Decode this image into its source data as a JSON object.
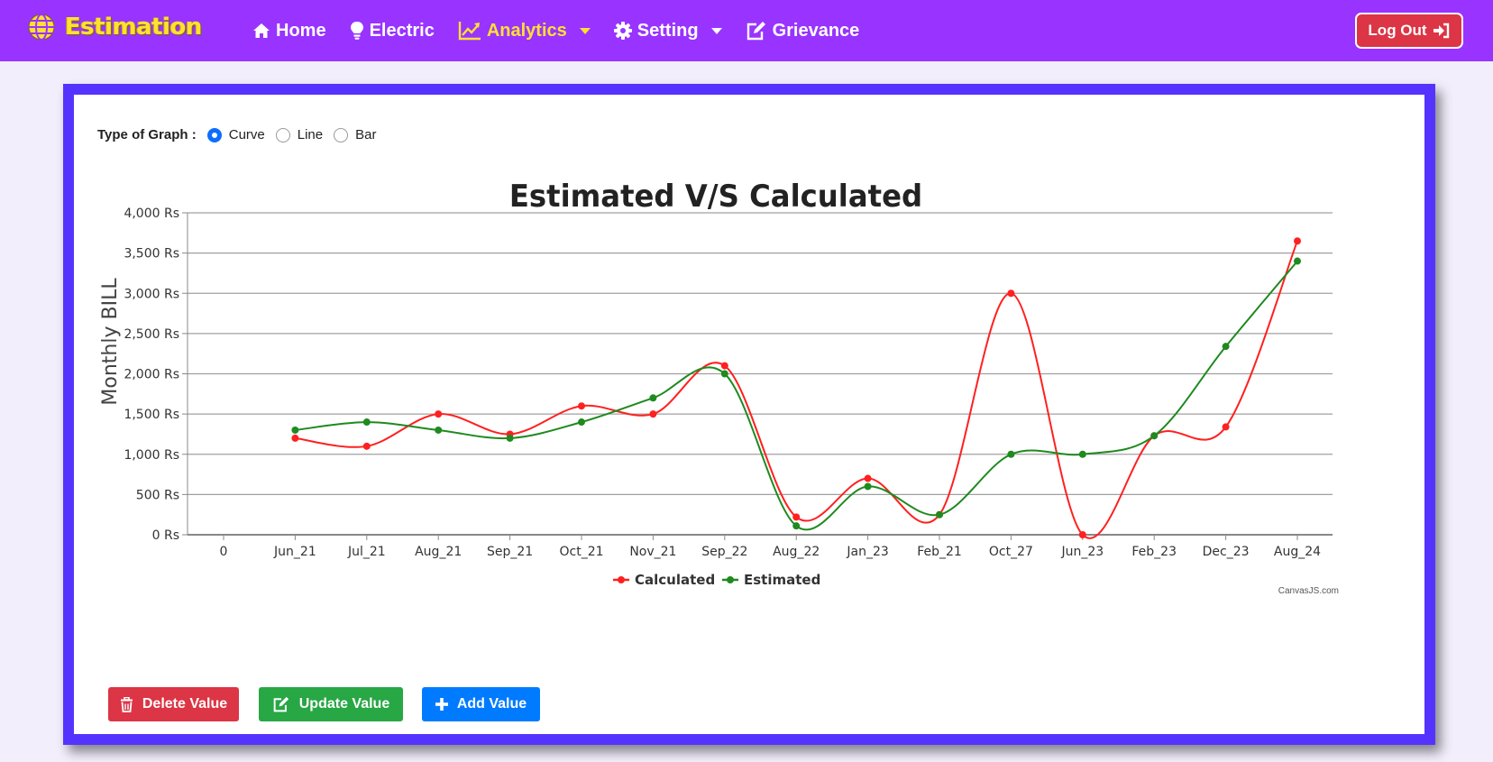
{
  "brand": {
    "name": "Estimation",
    "icon": "globe-icon"
  },
  "nav": {
    "home": {
      "label": "Home",
      "icon": "home-icon"
    },
    "electric": {
      "label": "Electric",
      "icon": "lightbulb-icon"
    },
    "analytics": {
      "label": "Analytics",
      "icon": "chart-line-icon"
    },
    "setting": {
      "label": "Setting",
      "icon": "gear-icon"
    },
    "grievance": {
      "label": "Grievance",
      "icon": "edit-icon"
    },
    "logout": {
      "label": "Log Out",
      "icon": "sign-in-icon"
    }
  },
  "graph_type": {
    "label": "Type of Graph :",
    "options": [
      "Curve",
      "Line",
      "Bar"
    ],
    "selected": "Curve"
  },
  "colors": {
    "nav": "#9933ff",
    "brand": "#ffe033",
    "panel": "#5533ff",
    "calculated": "#ff2020",
    "estimated": "#1f8a1f"
  },
  "chart_data": {
    "type": "line",
    "title": "Estimated V/S Calculated",
    "ylabel": "Monthly BILL",
    "xlabel": "",
    "ylim": [
      0,
      4000
    ],
    "y_ticks": [
      "0 Rs",
      "500 Rs",
      "1,000 Rs",
      "1,500 Rs",
      "2,000 Rs",
      "2,500 Rs",
      "3,000 Rs",
      "3,500 Rs",
      "4,000 Rs"
    ],
    "categories": [
      "0",
      "Jun_21",
      "Jul_21",
      "Aug_21",
      "Sep_21",
      "Oct_21",
      "Nov_21",
      "Sep_22",
      "Aug_22",
      "Jan_23",
      "Feb_21",
      "Oct_27",
      "Jun_23",
      "Feb_23",
      "Dec_23",
      "Aug_24"
    ],
    "series": [
      {
        "name": "Calculated",
        "color": "#ff2020",
        "values": [
          null,
          1200,
          1100,
          1500,
          1250,
          1600,
          1500,
          2100,
          220,
          700,
          250,
          3000,
          0,
          1230,
          1340,
          3650
        ]
      },
      {
        "name": "Estimated",
        "color": "#1f8a1f",
        "values": [
          null,
          1300,
          1400,
          1300,
          1200,
          1400,
          1700,
          2000,
          110,
          600,
          250,
          1000,
          1000,
          1230,
          2340,
          3400
        ]
      }
    ],
    "legend_position": "bottom",
    "grid": true,
    "credit": "CanvasJS.com"
  },
  "buttons": {
    "delete": {
      "label": "Delete Value",
      "icon": "trash-icon"
    },
    "update": {
      "label": "Update Value",
      "icon": "edit-icon"
    },
    "add": {
      "label": "Add Value",
      "icon": "plus-icon"
    }
  }
}
